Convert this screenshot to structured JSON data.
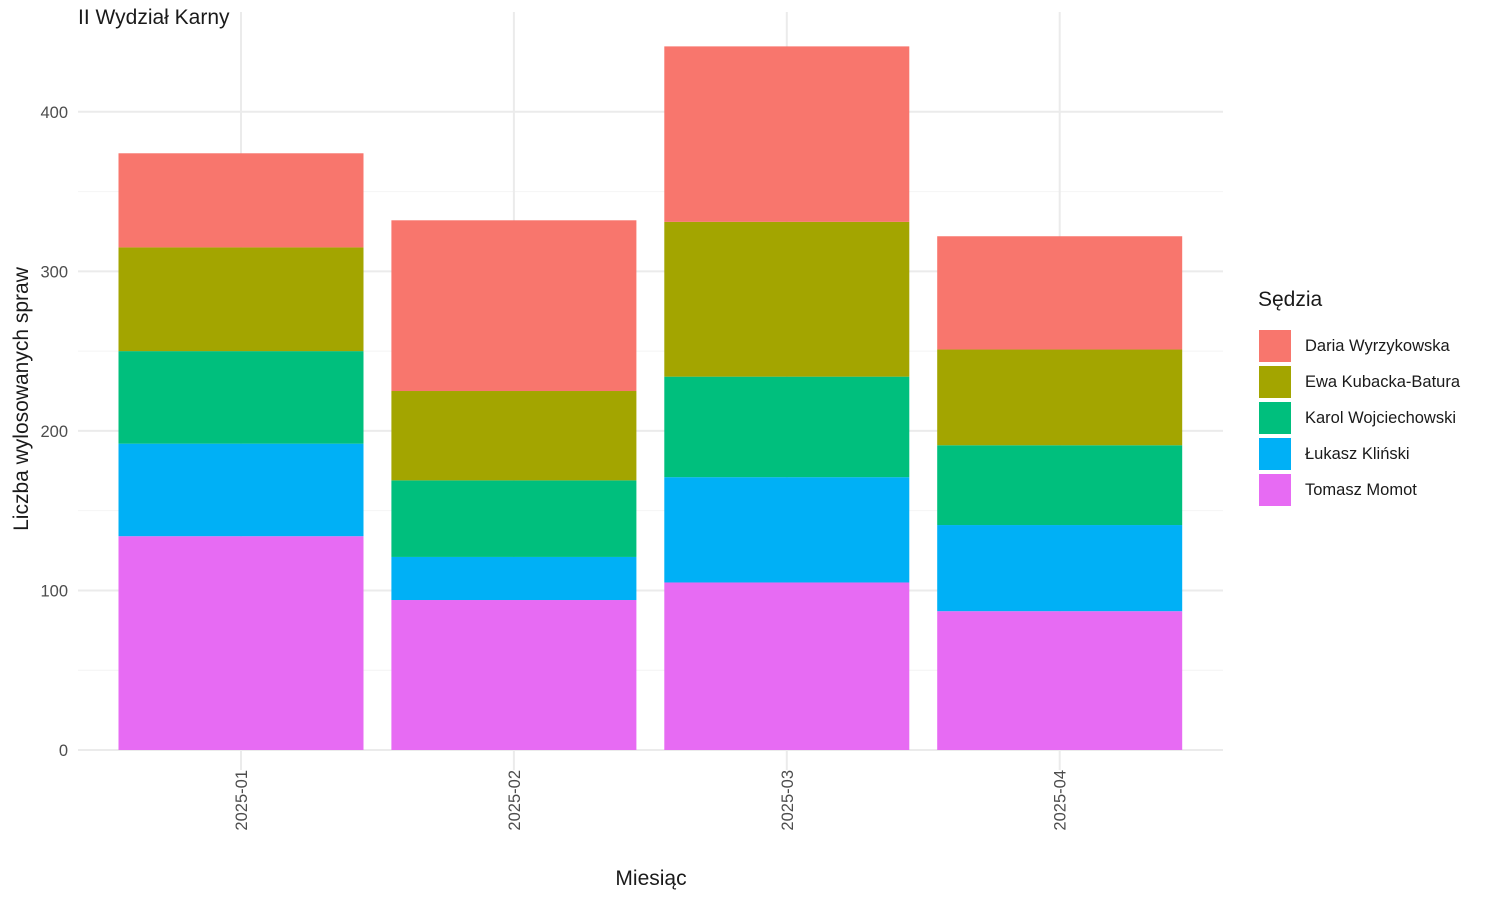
{
  "chart_data": {
    "type": "bar",
    "stacked": true,
    "title": "II Wydział Karny",
    "xlabel": "Miesiąc",
    "ylabel": "Liczba wylosowanych spraw",
    "ylim": [
      0,
      450
    ],
    "yticks": [
      0,
      100,
      200,
      300,
      400
    ],
    "grid": true,
    "legend_title": "Sędzia",
    "legend_position": "right",
    "categories": [
      "2025-01",
      "2025-02",
      "2025-03",
      "2025-04"
    ],
    "series": [
      {
        "name": "Tomasz Momot",
        "color": "#E76BF3",
        "values": [
          134,
          94,
          105,
          87
        ]
      },
      {
        "name": "Łukasz Kliński",
        "color": "#00B0F6",
        "values": [
          58,
          27,
          66,
          54
        ]
      },
      {
        "name": "Karol Wojciechowski",
        "color": "#00BF7D",
        "values": [
          58,
          48,
          63,
          50
        ]
      },
      {
        "name": "Ewa Kubacka-Batura",
        "color": "#A3A500",
        "values": [
          65,
          56,
          97,
          60
        ]
      },
      {
        "name": "Daria Wyrzykowska",
        "color": "#F8766D",
        "values": [
          59,
          107,
          110,
          71
        ]
      }
    ]
  }
}
